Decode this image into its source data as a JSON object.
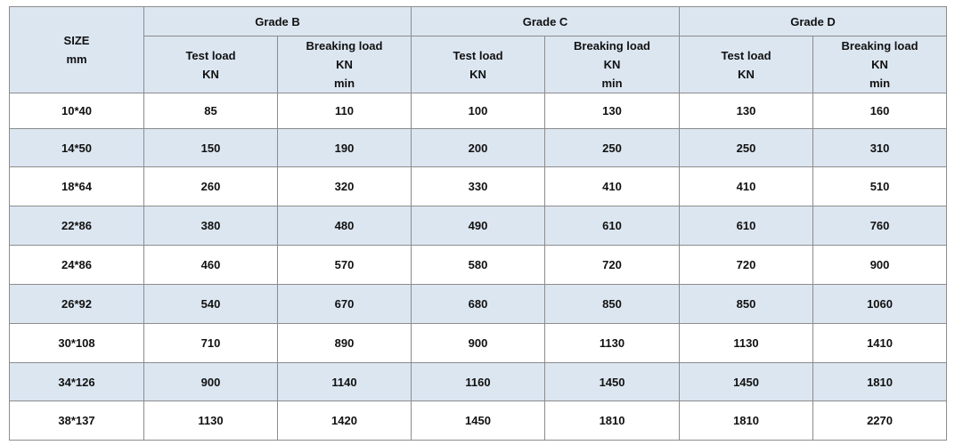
{
  "header": {
    "size": [
      "SIZE",
      "mm"
    ],
    "grades": [
      {
        "name": "Grade B",
        "columns": [
          [
            "Test load",
            "KN"
          ],
          [
            "Breaking load",
            "KN",
            "min"
          ]
        ]
      },
      {
        "name": "Grade C",
        "columns": [
          [
            "Test load",
            "KN"
          ],
          [
            "Breaking load",
            "KN",
            "min"
          ]
        ]
      },
      {
        "name": "Grade D",
        "columns": [
          [
            "Test load",
            "KN"
          ],
          [
            "Breaking load",
            "KN",
            "min"
          ]
        ]
      }
    ]
  },
  "rows": [
    [
      "10*40",
      85,
      110,
      100,
      130,
      130,
      160
    ],
    [
      "14*50",
      150,
      190,
      200,
      250,
      250,
      310
    ],
    [
      "18*64",
      260,
      320,
      330,
      410,
      410,
      510
    ],
    [
      "22*86",
      380,
      480,
      490,
      610,
      610,
      760
    ],
    [
      "24*86",
      460,
      570,
      580,
      720,
      720,
      900
    ],
    [
      "26*92",
      540,
      670,
      680,
      850,
      850,
      1060
    ],
    [
      "30*108",
      710,
      890,
      900,
      1130,
      1130,
      1410
    ],
    [
      "34*126",
      900,
      1140,
      1160,
      1450,
      1450,
      1810
    ],
    [
      "38*137",
      1130,
      1420,
      1450,
      1810,
      1810,
      2270
    ]
  ]
}
